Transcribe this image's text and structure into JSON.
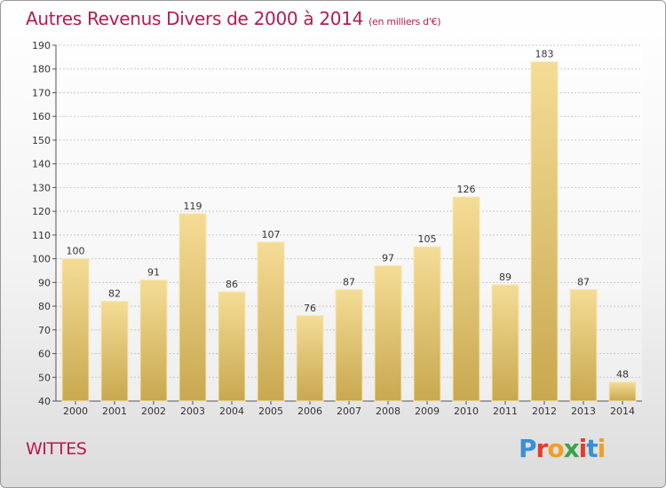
{
  "header": {
    "title": "Autres Revenus Divers de 2000 à 2014",
    "subtitle": "(en milliers d'€)"
  },
  "footer": {
    "city": "WITTES",
    "logo_text": "Proxiti",
    "logo_colors": [
      "#3a8fd6",
      "#e53b2c",
      "#f0a020",
      "#3aa34a",
      "#e53b2c",
      "#3a8fd6",
      "#f0a020"
    ]
  },
  "colors": {
    "title": "#b31b53",
    "bar_top": "#f5dc96",
    "bar_bottom": "#c8a84f",
    "grid": "#c8c8c8"
  },
  "chart_data": {
    "type": "bar",
    "categories": [
      "2000",
      "2001",
      "2002",
      "2003",
      "2004",
      "2005",
      "2006",
      "2007",
      "2008",
      "2009",
      "2010",
      "2011",
      "2012",
      "2013",
      "2014"
    ],
    "values": [
      100,
      82,
      91,
      119,
      86,
      107,
      76,
      87,
      97,
      105,
      126,
      89,
      183,
      87,
      48
    ],
    "ylim": [
      40,
      190
    ],
    "yticks": [
      40,
      50,
      60,
      70,
      80,
      90,
      100,
      110,
      120,
      130,
      140,
      150,
      160,
      170,
      180,
      190
    ],
    "grid": true,
    "title": "Autres Revenus Divers de 2000 à 2014",
    "xlabel": "",
    "ylabel": ""
  }
}
